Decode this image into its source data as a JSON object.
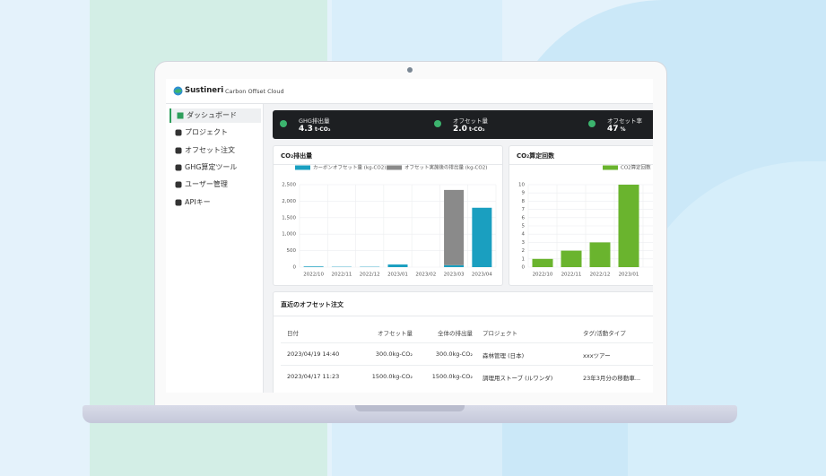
{
  "header": {
    "brand": "Sustineri",
    "product": "Carbon Offset Cloud"
  },
  "sidebar": {
    "items": [
      "ダッシュボード",
      "プロジェクト",
      "オフセット注文",
      "GHG算定ツール",
      "ユーザー管理",
      "APIキー"
    ]
  },
  "stats": [
    {
      "label": "GHG排出量",
      "value": "4.3",
      "unit": "t-CO₂"
    },
    {
      "label": "オフセット量",
      "value": "2.0",
      "unit": "t-CO₂"
    },
    {
      "label": "オフセット率",
      "value": "47",
      "unit": "%"
    }
  ],
  "chart_data": [
    {
      "type": "bar",
      "title": "CO₂排出量",
      "stacked": true,
      "categories": [
        "2022/10",
        "2022/11",
        "2022/12",
        "2023/01",
        "2023/02",
        "2023/03",
        "2023/04"
      ],
      "series": [
        {
          "name": "カーボンオフセット量 (kg-CO2)",
          "color": "#1a9fc0",
          "values": [
            20,
            10,
            10,
            80,
            0,
            60,
            1800
          ]
        },
        {
          "name": "オフセット実施後の排出量 (kg-CO2)",
          "color": "#8a8a8a",
          "values": [
            0,
            0,
            0,
            0,
            0,
            2280,
            0
          ]
        }
      ],
      "ylim": [
        0,
        2500
      ],
      "yticks": [
        0,
        500,
        {
          "value": 1000,
          "label": "1,000"
        },
        {
          "value": 1500,
          "label": "1,500"
        },
        {
          "value": 2000,
          "label": "2,000"
        },
        {
          "value": 2500,
          "label": "2,500"
        }
      ],
      "grid": true
    },
    {
      "type": "bar",
      "title": "CO₂算定回数",
      "categories": [
        "2022/10",
        "2022/11",
        "2022/12",
        "2023/01"
      ],
      "series": [
        {
          "name": "CO2算定回数",
          "color": "#6ab42e",
          "values": [
            1,
            2,
            3,
            10
          ]
        }
      ],
      "ylim": [
        0,
        10
      ],
      "yticks": [
        0,
        1,
        2,
        3,
        4,
        5,
        6,
        7,
        8,
        9,
        10
      ],
      "grid": true
    }
  ],
  "table": {
    "title": "直近のオフセット注文",
    "columns": [
      "日付",
      "オフセット量",
      "全体の排出量",
      "プロジェクト",
      "タグ/活動タイプ"
    ],
    "rows": [
      [
        "2023/04/19 14:40",
        "300.0kg-CO₂",
        "300.0kg-CO₂",
        "森林管理 (日本)",
        "xxxツアー"
      ],
      [
        "2023/04/17 11:23",
        "1500.0kg-CO₂",
        "1500.0kg-CO₂",
        "調理用ストーブ (ルワンダ)",
        "23年3月分の移動車..."
      ]
    ]
  }
}
